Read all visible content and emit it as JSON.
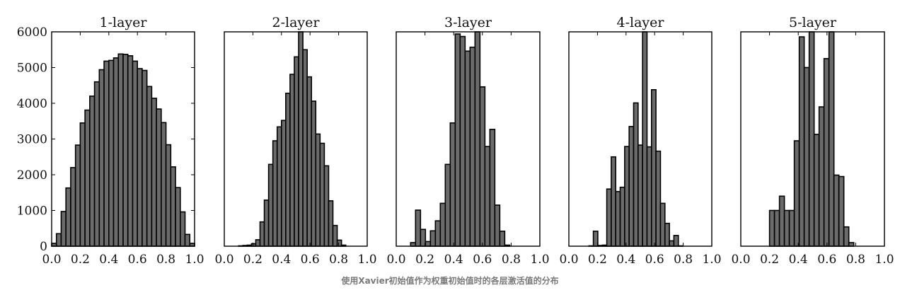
{
  "caption": "使用Xavier初始值作为权重初始值时的各层激活值的分布",
  "chart_data": [
    {
      "type": "bar",
      "title": "1-layer",
      "xlim": [
        0.0,
        1.0
      ],
      "ylim": [
        0,
        6000
      ],
      "xticks": [
        "0.0",
        "0.2",
        "0.4",
        "0.6",
        "0.8",
        "1.0"
      ],
      "yticks": [
        "0",
        "1000",
        "2000",
        "3000",
        "4000",
        "5000",
        "6000"
      ],
      "bin_width": 0.0333,
      "bins": [
        0.0,
        0.0333,
        0.0667,
        0.1,
        0.1333,
        0.1667,
        0.2,
        0.2333,
        0.2667,
        0.3,
        0.3333,
        0.3667,
        0.4,
        0.4333,
        0.4667,
        0.5,
        0.5333,
        0.5667,
        0.6,
        0.6333,
        0.6667,
        0.7,
        0.7333,
        0.7667,
        0.8,
        0.8333,
        0.8667,
        0.9,
        0.9333,
        0.9667
      ],
      "values": [
        80,
        350,
        970,
        1630,
        2200,
        2830,
        3450,
        3810,
        4200,
        4600,
        4940,
        5180,
        5200,
        5270,
        5380,
        5370,
        5330,
        5180,
        4970,
        4920,
        4470,
        4140,
        3840,
        3460,
        2840,
        2220,
        1640,
        960,
        330,
        80
      ],
      "bar_color": "#6b6b6b"
    },
    {
      "type": "bar",
      "title": "2-layer",
      "xlim": [
        0.0,
        1.0
      ],
      "ylim": [
        0,
        6000
      ],
      "xticks": [
        "0.0",
        "0.2",
        "0.4",
        "0.6",
        "0.8",
        "1.0"
      ],
      "bin_width": 0.03,
      "bins": [
        0.1,
        0.13,
        0.16,
        0.19,
        0.22,
        0.25,
        0.28,
        0.31,
        0.34,
        0.37,
        0.4,
        0.43,
        0.46,
        0.49,
        0.52,
        0.55,
        0.58,
        0.61,
        0.64,
        0.67,
        0.7,
        0.73,
        0.76,
        0.79,
        0.82
      ],
      "values": [
        10,
        20,
        30,
        70,
        180,
        680,
        1290,
        2290,
        2950,
        3340,
        3520,
        4280,
        4810,
        5300,
        6000,
        5500,
        4740,
        4060,
        3140,
        2880,
        2250,
        1270,
        580,
        170,
        30
      ],
      "bar_color": "#6b6b6b"
    },
    {
      "type": "bar",
      "title": "3-layer",
      "xlim": [
        0.0,
        1.0
      ],
      "ylim": [
        0,
        6000
      ],
      "xticks": [
        "0.0",
        "0.2",
        "0.4",
        "0.6",
        "0.8",
        "1.0"
      ],
      "bin_width": 0.0345,
      "bins": [
        0.1,
        0.1345,
        0.169,
        0.2035,
        0.238,
        0.2725,
        0.307,
        0.3415,
        0.376,
        0.4105,
        0.445,
        0.4795,
        0.514,
        0.5485,
        0.583,
        0.6175,
        0.652,
        0.6865,
        0.721,
        0.7555
      ],
      "values": [
        100,
        1010,
        470,
        130,
        430,
        710,
        1200,
        2290,
        3450,
        5940,
        5870,
        5460,
        5570,
        6000,
        4460,
        2790,
        3270,
        1150,
        420,
        30
      ],
      "bar_color": "#6b6b6b"
    },
    {
      "type": "bar",
      "title": "4-layer",
      "xlim": [
        0.0,
        1.0
      ],
      "ylim": [
        0,
        6000
      ],
      "xticks": [
        "0.0",
        "0.2",
        "0.4",
        "0.6",
        "0.8",
        "1.0"
      ],
      "bin_width": 0.0313,
      "bins": [
        0.14,
        0.1713,
        0.2026,
        0.2339,
        0.2652,
        0.2965,
        0.3278,
        0.3591,
        0.3904,
        0.4217,
        0.453,
        0.4843,
        0.5156,
        0.5469,
        0.5782,
        0.6095,
        0.6408,
        0.6721,
        0.7034,
        0.7347,
        0.766
      ],
      "values": [
        10,
        420,
        20,
        30,
        1600,
        2500,
        1530,
        1650,
        2790,
        3350,
        4010,
        2830,
        6000,
        2780,
        4380,
        2660,
        1200,
        640,
        150,
        300,
        10
      ],
      "bar_color": "#6b6b6b"
    },
    {
      "type": "bar",
      "title": "5-layer",
      "xlim": [
        0.0,
        1.0
      ],
      "ylim": [
        0,
        6000
      ],
      "xticks": [
        "0.0",
        "0.2",
        "0.4",
        "0.6",
        "0.8",
        "1.0"
      ],
      "bin_width": 0.0345,
      "bins": [
        0.2,
        0.2345,
        0.269,
        0.3035,
        0.338,
        0.3725,
        0.407,
        0.4415,
        0.476,
        0.5105,
        0.545,
        0.5795,
        0.614,
        0.6485,
        0.683,
        0.7175,
        0.752
      ],
      "values": [
        1000,
        1000,
        1400,
        1000,
        1000,
        2950,
        5860,
        5000,
        6000,
        3130,
        3900,
        5250,
        6000,
        1990,
        1950,
        540,
        100
      ],
      "bar_color": "#6b6b6b"
    }
  ]
}
